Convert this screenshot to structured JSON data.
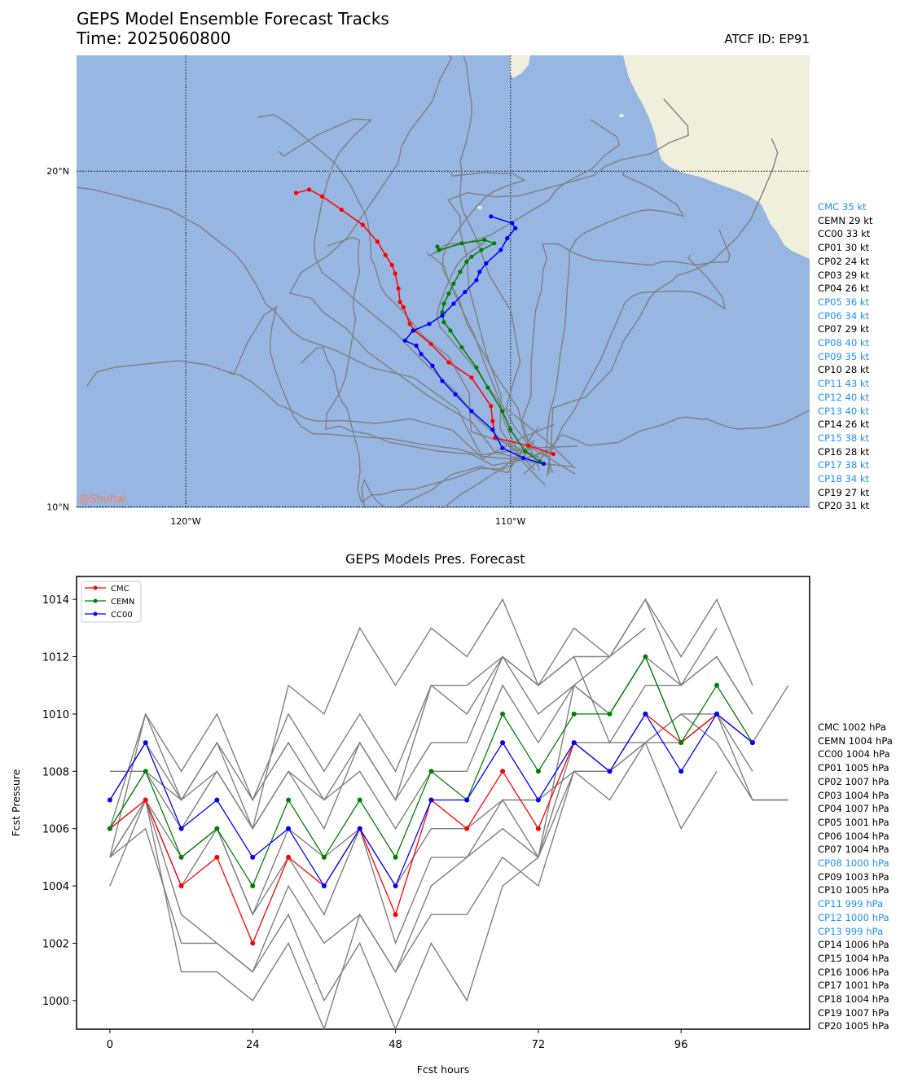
{
  "chart_data": [
    {
      "type": "map",
      "title": "GEPS Model Ensemble Forecast Tracks",
      "subtitle": "Time: 2025060800",
      "atcf_label": "ATCF ID: EP91",
      "watermark": "@Shuitai",
      "lon_range": [
        -123.36,
        -100.79
      ],
      "lat_range": [
        9.96,
        23.45
      ],
      "x_ticks": [
        {
          "value": -120,
          "label": "120°W"
        },
        {
          "value": -110,
          "label": "110°W"
        }
      ],
      "y_ticks": [
        {
          "value": 20,
          "label": "20°N"
        },
        {
          "value": 10,
          "label": "10°N"
        }
      ],
      "colors": {
        "ocean": "#97b6e1",
        "land": "#efefdb",
        "track": "#808080"
      },
      "legend": [
        {
          "label": "CMC 35 kt",
          "color": "#1e90ff"
        },
        {
          "label": "CEMN 29 kt",
          "color": "#000000"
        },
        {
          "label": "CC00 33 kt",
          "color": "#000000"
        },
        {
          "label": "CP01 30 kt",
          "color": "#000000"
        },
        {
          "label": "CP02 24 kt",
          "color": "#000000"
        },
        {
          "label": "CP03 29 kt",
          "color": "#000000"
        },
        {
          "label": "CP04 26 kt",
          "color": "#000000"
        },
        {
          "label": "CP05 36 kt",
          "color": "#1e90ff"
        },
        {
          "label": "CP06 34 kt",
          "color": "#1e90ff"
        },
        {
          "label": "CP07 29 kt",
          "color": "#000000"
        },
        {
          "label": "CP08 40 kt",
          "color": "#1e90ff"
        },
        {
          "label": "CP09 35 kt",
          "color": "#1e90ff"
        },
        {
          "label": "CP10 28 kt",
          "color": "#000000"
        },
        {
          "label": "CP11 43 kt",
          "color": "#1e90ff"
        },
        {
          "label": "CP12 40 kt",
          "color": "#1e90ff"
        },
        {
          "label": "CP13 40 kt",
          "color": "#1e90ff"
        },
        {
          "label": "CP14 26 kt",
          "color": "#000000"
        },
        {
          "label": "CP15 38 kt",
          "color": "#1e90ff"
        },
        {
          "label": "CP16 28 kt",
          "color": "#000000"
        },
        {
          "label": "CP17 38 kt",
          "color": "#1e90ff"
        },
        {
          "label": "CP18 34 kt",
          "color": "#1e90ff"
        },
        {
          "label": "CP19 27 kt",
          "color": "#000000"
        },
        {
          "label": "CP20 31 kt",
          "color": "#000000"
        }
      ],
      "highlight_tracks": [
        {
          "name": "CMC",
          "color": "#ff0000",
          "points": [
            [
              -108.68,
              11.57
            ],
            [
              -109.45,
              11.82
            ],
            [
              -110.47,
              12.05
            ],
            [
              -110.55,
              12.55
            ],
            [
              -110.6,
              13.0
            ],
            [
              -111.2,
              13.85
            ],
            [
              -111.9,
              14.3
            ],
            [
              -112.45,
              14.85
            ],
            [
              -112.95,
              15.25
            ],
            [
              -113.1,
              15.45
            ],
            [
              -113.3,
              15.95
            ],
            [
              -113.4,
              16.1
            ],
            [
              -113.45,
              16.5
            ],
            [
              -113.55,
              16.95
            ],
            [
              -113.65,
              17.2
            ],
            [
              -113.85,
              17.5
            ],
            [
              -114.1,
              17.9
            ],
            [
              -114.55,
              18.4
            ],
            [
              -115.2,
              18.85
            ],
            [
              -115.8,
              19.25
            ],
            [
              -116.2,
              19.45
            ],
            [
              -116.6,
              19.35
            ]
          ]
        },
        {
          "name": "CEMN",
          "color": "#008000",
          "points": [
            [
              -109.1,
              11.35
            ],
            [
              -109.55,
              11.65
            ],
            [
              -110.0,
              12.3
            ],
            [
              -110.25,
              12.85
            ],
            [
              -110.7,
              13.55
            ],
            [
              -111.05,
              14.15
            ],
            [
              -111.5,
              14.75
            ],
            [
              -111.85,
              15.25
            ],
            [
              -112.05,
              15.5
            ],
            [
              -112.1,
              15.8
            ],
            [
              -112.05,
              16.05
            ],
            [
              -111.9,
              16.35
            ],
            [
              -111.75,
              16.65
            ],
            [
              -111.55,
              17.0
            ],
            [
              -111.35,
              17.3
            ],
            [
              -111.2,
              17.45
            ],
            [
              -110.9,
              17.65
            ],
            [
              -110.5,
              17.85
            ],
            [
              -110.8,
              17.95
            ],
            [
              -111.5,
              17.85
            ],
            [
              -112.2,
              17.65
            ],
            [
              -112.25,
              17.75
            ]
          ]
        },
        {
          "name": "CC00",
          "color": "#0000ff",
          "points": [
            [
              -108.98,
              11.28
            ],
            [
              -109.6,
              11.45
            ],
            [
              -110.25,
              11.75
            ],
            [
              -110.55,
              12.3
            ],
            [
              -111.2,
              12.85
            ],
            [
              -111.7,
              13.35
            ],
            [
              -112.1,
              13.75
            ],
            [
              -112.4,
              14.2
            ],
            [
              -112.75,
              14.55
            ],
            [
              -112.9,
              14.8
            ],
            [
              -113.25,
              14.95
            ],
            [
              -113.0,
              15.25
            ],
            [
              -112.5,
              15.45
            ],
            [
              -112.1,
              15.7
            ],
            [
              -111.75,
              16.05
            ],
            [
              -111.4,
              16.4
            ],
            [
              -111.05,
              16.75
            ],
            [
              -110.95,
              17.0
            ],
            [
              -110.75,
              17.25
            ],
            [
              -110.3,
              17.65
            ],
            [
              -110.1,
              18.0
            ],
            [
              -109.85,
              18.3
            ],
            [
              -109.95,
              18.45
            ],
            [
              -110.6,
              18.65
            ]
          ]
        }
      ]
    },
    {
      "type": "line",
      "title": "GEPS Models Pres. Forecast",
      "xlabel": "Fcst hours",
      "ylabel": "Fcst Pressure",
      "xlim": [
        -5.6,
        117.6
      ],
      "ylim": [
        999.0,
        1014.8
      ],
      "x_ticks": [
        0,
        24,
        48,
        72,
        96
      ],
      "y_ticks": [
        1000,
        1002,
        1004,
        1006,
        1008,
        1010,
        1012,
        1014
      ],
      "x": [
        0,
        6,
        12,
        18,
        24,
        30,
        36,
        42,
        48,
        54,
        60,
        66,
        72,
        78,
        84,
        90,
        96,
        102,
        108,
        114
      ],
      "series": [
        {
          "name": "CMC",
          "color": "#ff0000",
          "values": [
            1006,
            1007,
            1004,
            1005,
            1002,
            1005,
            1004,
            1006,
            1003,
            1007,
            1006,
            1008,
            1006,
            1009,
            1008,
            1010,
            1009,
            1010,
            1009,
            null
          ]
        },
        {
          "name": "CEMN",
          "color": "#008000",
          "values": [
            1006,
            1008,
            1005,
            1006,
            1004,
            1007,
            1005,
            1007,
            1005,
            1008,
            1007,
            1010,
            1008,
            1010,
            1010,
            1012,
            1009,
            1011,
            1009,
            null
          ]
        },
        {
          "name": "CC00",
          "color": "#0000ff",
          "values": [
            1007,
            1009,
            1006,
            1007,
            1005,
            1006,
            1004,
            1006,
            1004,
            1007,
            1007,
            1009,
            1007,
            1009,
            1008,
            1010,
            1008,
            1010,
            1009,
            null
          ]
        }
      ],
      "ensemble_values": [
        [
          1005,
          1010,
          1008,
          1010,
          1007,
          1010,
          1008,
          1010,
          1008,
          1011,
          1011,
          1012,
          1010,
          1011,
          1012,
          1014,
          1012,
          1014,
          1011,
          null
        ],
        [
          1007,
          1009,
          1007,
          1009,
          1007,
          1009,
          1007,
          1009,
          1007,
          1009,
          1009,
          1012,
          1011,
          1012,
          1012,
          1014,
          1011,
          1013,
          null,
          null
        ],
        [
          1008,
          1008,
          1007,
          1008,
          1006,
          1008,
          1006,
          1009,
          1007,
          1011,
          1010,
          1012,
          1011,
          1012,
          1009,
          1011,
          1011,
          1012,
          1010,
          null
        ],
        [
          1006,
          1008,
          1006,
          1008,
          1006,
          1008,
          1007,
          1008,
          1006,
          1008,
          1008,
          1011,
          1009,
          1011,
          1010,
          1012,
          1009,
          1010,
          1009,
          1011
        ],
        [
          1005,
          1007,
          1005,
          1006,
          1003,
          1006,
          1005,
          1006,
          1004,
          1006,
          1006,
          1007,
          1007,
          1008,
          1008,
          1009,
          1009,
          1010,
          1008,
          null
        ],
        [
          1006,
          1010,
          1007,
          1009,
          1006,
          1011,
          1010,
          1013,
          1011,
          1013,
          1012,
          1014,
          1011,
          1013,
          1012,
          1013,
          null,
          null,
          null,
          null
        ],
        [
          1004,
          1007,
          1003,
          1002,
          1001,
          1004,
          1002,
          1003,
          1001,
          1004,
          1005,
          1006,
          1005,
          1009,
          1009,
          1009,
          1006,
          1008,
          null,
          null
        ],
        [
          1005,
          1006,
          1002,
          1002,
          1001,
          1003,
          1000,
          1002,
          999,
          1002,
          1000,
          1004,
          1005,
          1008,
          1008,
          1009,
          1010,
          1010,
          1007,
          1007
        ],
        [
          1006,
          1007,
          1004,
          1006,
          1003,
          1005,
          1003,
          1006,
          1002,
          1005,
          1005,
          1007,
          1005,
          1011,
          1010,
          1012,
          1011,
          1012,
          1010,
          null
        ],
        [
          1005,
          1007,
          1001,
          1001,
          1000,
          1002,
          999,
          1003,
          1001,
          1003,
          1003,
          1005,
          1004,
          1008,
          1007,
          1009,
          1010,
          1009,
          1007,
          1007
        ]
      ],
      "legend_placement": "upper-left",
      "legend": [
        {
          "label": "CMC 1002 hPa",
          "color": "#000000"
        },
        {
          "label": "CEMN 1004 hPa",
          "color": "#000000"
        },
        {
          "label": "CC00 1004 hPa",
          "color": "#000000"
        },
        {
          "label": "CP01 1005 hPa",
          "color": "#000000"
        },
        {
          "label": "CP02 1007 hPa",
          "color": "#000000"
        },
        {
          "label": "CP03 1004 hPa",
          "color": "#000000"
        },
        {
          "label": "CP04 1007 hPa",
          "color": "#000000"
        },
        {
          "label": "CP05 1001 hPa",
          "color": "#000000"
        },
        {
          "label": "CP06 1004 hPa",
          "color": "#000000"
        },
        {
          "label": "CP07 1004 hPa",
          "color": "#000000"
        },
        {
          "label": "CP08 1000 hPa",
          "color": "#1e90ff"
        },
        {
          "label": "CP09 1003 hPa",
          "color": "#000000"
        },
        {
          "label": "CP10 1005 hPa",
          "color": "#000000"
        },
        {
          "label": "CP11 999 hPa",
          "color": "#1e90ff"
        },
        {
          "label": "CP12 1000 hPa",
          "color": "#1e90ff"
        },
        {
          "label": "CP13 999 hPa",
          "color": "#1e90ff"
        },
        {
          "label": "CP14 1006 hPa",
          "color": "#000000"
        },
        {
          "label": "CP15 1004 hPa",
          "color": "#000000"
        },
        {
          "label": "CP16 1006 hPa",
          "color": "#000000"
        },
        {
          "label": "CP17 1001 hPa",
          "color": "#000000"
        },
        {
          "label": "CP18 1004 hPa",
          "color": "#000000"
        },
        {
          "label": "CP19 1007 hPa",
          "color": "#000000"
        },
        {
          "label": "CP20 1005 hPa",
          "color": "#000000"
        }
      ]
    }
  ]
}
